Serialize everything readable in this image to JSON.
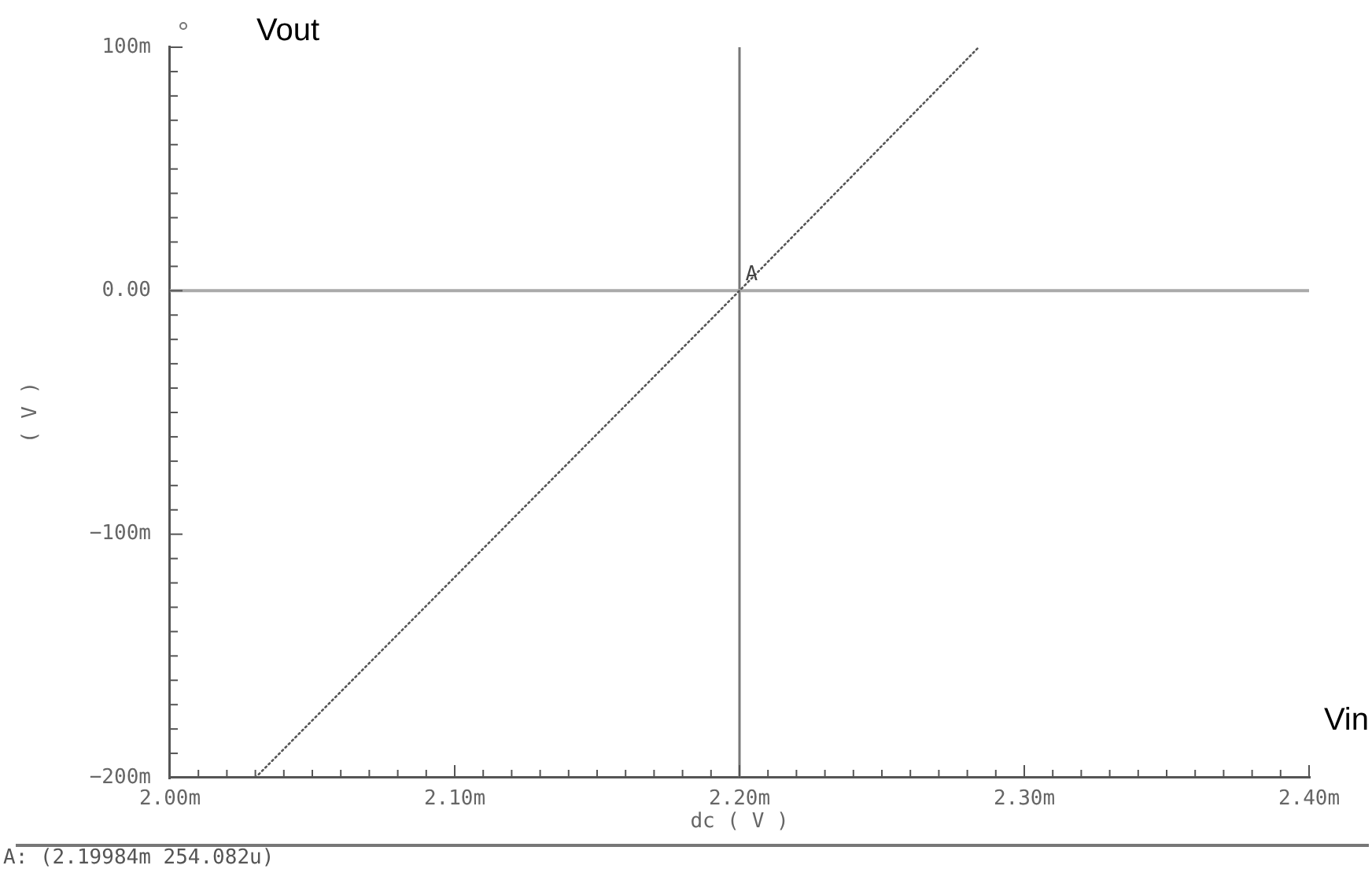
{
  "chart_data": {
    "type": "line",
    "xlabel": "dc ( V )",
    "ylabel": "( V )",
    "x": [
      2.03,
      2.2,
      2.284
    ],
    "series": [
      {
        "color": "#555555",
        "values": [
          -200,
          0,
          100
        ]
      }
    ],
    "line_style": "dotted",
    "marker": "none",
    "xlim": [
      2.0,
      2.4
    ],
    "xticks": [
      {
        "value": 2.0,
        "label": "2.00m"
      },
      {
        "value": 2.01,
        "label": null
      },
      {
        "value": 2.02,
        "label": null
      },
      {
        "value": 2.03,
        "label": null
      },
      {
        "value": 2.04,
        "label": null
      },
      {
        "value": 2.05,
        "label": null
      },
      {
        "value": 2.06,
        "label": null
      },
      {
        "value": 2.07,
        "label": null
      },
      {
        "value": 2.08,
        "label": null
      },
      {
        "value": 2.09,
        "label": null
      },
      {
        "value": 2.1,
        "label": "2.10m"
      },
      {
        "value": 2.11,
        "label": null
      },
      {
        "value": 2.12,
        "label": null
      },
      {
        "value": 2.13,
        "label": null
      },
      {
        "value": 2.14,
        "label": null
      },
      {
        "value": 2.15,
        "label": null
      },
      {
        "value": 2.16,
        "label": null
      },
      {
        "value": 2.17,
        "label": null
      },
      {
        "value": 2.18,
        "label": null
      },
      {
        "value": 2.19,
        "label": null
      },
      {
        "value": 2.2,
        "label": "2.20m"
      },
      {
        "value": 2.21,
        "label": null
      },
      {
        "value": 2.22,
        "label": null
      },
      {
        "value": 2.23,
        "label": null
      },
      {
        "value": 2.24,
        "label": null
      },
      {
        "value": 2.25,
        "label": null
      },
      {
        "value": 2.26,
        "label": null
      },
      {
        "value": 2.27,
        "label": null
      },
      {
        "value": 2.28,
        "label": null
      },
      {
        "value": 2.29,
        "label": null
      },
      {
        "value": 2.3,
        "label": "2.30m"
      },
      {
        "value": 2.31,
        "label": null
      },
      {
        "value": 2.32,
        "label": null
      },
      {
        "value": 2.33,
        "label": null
      },
      {
        "value": 2.34,
        "label": null
      },
      {
        "value": 2.35,
        "label": null
      },
      {
        "value": 2.36,
        "label": null
      },
      {
        "value": 2.37,
        "label": null
      },
      {
        "value": 2.38,
        "label": null
      },
      {
        "value": 2.39,
        "label": null
      },
      {
        "value": 2.4,
        "label": "2.40m"
      }
    ],
    "ylim": [
      -200,
      100
    ],
    "yticks": [
      {
        "value": -200,
        "label": "−200m"
      },
      {
        "value": -190,
        "label": null
      },
      {
        "value": -180,
        "label": null
      },
      {
        "value": -170,
        "label": null
      },
      {
        "value": -160,
        "label": null
      },
      {
        "value": -150,
        "label": null
      },
      {
        "value": -140,
        "label": null
      },
      {
        "value": -130,
        "label": null
      },
      {
        "value": -120,
        "label": null
      },
      {
        "value": -110,
        "label": null
      },
      {
        "value": -100,
        "label": "−100m"
      },
      {
        "value": -90,
        "label": null
      },
      {
        "value": -80,
        "label": null
      },
      {
        "value": -70,
        "label": null
      },
      {
        "value": -60,
        "label": null
      },
      {
        "value": -50,
        "label": null
      },
      {
        "value": -40,
        "label": null
      },
      {
        "value": -30,
        "label": null
      },
      {
        "value": -20,
        "label": null
      },
      {
        "value": -10,
        "label": null
      },
      {
        "value": 0,
        "label": "0.00"
      },
      {
        "value": 10,
        "label": null
      },
      {
        "value": 20,
        "label": null
      },
      {
        "value": 30,
        "label": null
      },
      {
        "value": 40,
        "label": null
      },
      {
        "value": 50,
        "label": null
      },
      {
        "value": 60,
        "label": null
      },
      {
        "value": 70,
        "label": null
      },
      {
        "value": 80,
        "label": null
      },
      {
        "value": 90,
        "label": null
      },
      {
        "value": 100,
        "label": "100m"
      }
    ],
    "ref_lines": [
      {
        "axis": "x",
        "value": 2.2,
        "color": "#777777"
      },
      {
        "axis": "y",
        "value": 0,
        "color": "#aaaaaa"
      }
    ],
    "annotations": [
      "Vout",
      "Vin",
      "A: (2.19984m 254.082u)",
      {
        "text": "A",
        "x": 2.19984,
        "y": 0.254082
      }
    ]
  }
}
